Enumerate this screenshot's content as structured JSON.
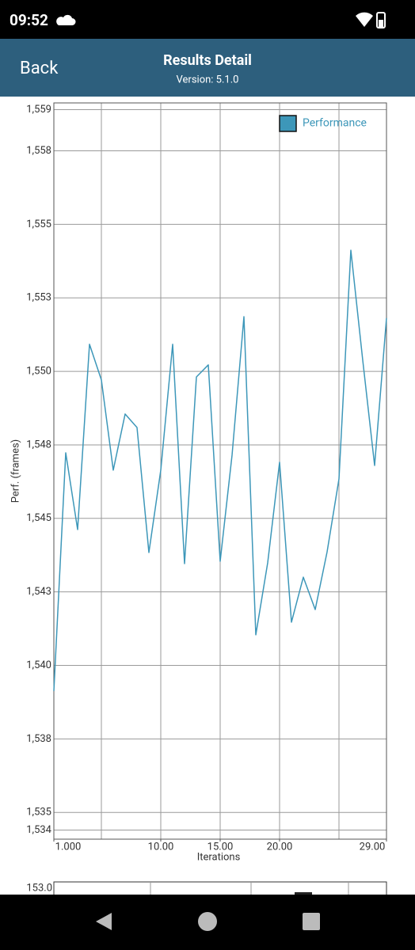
{
  "status_bar": {
    "time": "09:52"
  },
  "header": {
    "back": "Back",
    "title": "Results Detail",
    "subtitle": "Version: 5.1.0"
  },
  "chart_data": {
    "type": "line",
    "x_label": "Iterations",
    "y_label": "Perf. (frames)",
    "x": [
      1,
      2,
      3,
      4,
      5,
      6,
      7,
      8,
      9,
      10,
      11,
      12,
      13,
      14,
      15,
      16,
      17,
      18,
      19,
      20,
      21,
      22,
      23,
      24,
      25,
      26,
      27,
      28,
      29
    ],
    "series": [
      {
        "name": "Performance",
        "color": "#3d97b9",
        "values": [
          1539.13,
          1547.23,
          1544.62,
          1550.92,
          1549.71,
          1546.64,
          1548.55,
          1548.09,
          1543.84,
          1546.64,
          1550.92,
          1543.46,
          1549.81,
          1550.22,
          1543.54,
          1547.15,
          1551.86,
          1541.04,
          1543.49,
          1546.91,
          1541.47,
          1543.0,
          1541.9,
          1543.86,
          1546.34,
          1554.12,
          1550.38,
          1546.8,
          1551.81
        ]
      }
    ],
    "xlim": [
      1,
      29
    ],
    "xticks": [
      {
        "value": 1,
        "label": "1.000"
      },
      {
        "value": 10,
        "label": "10.00"
      },
      {
        "value": 15,
        "label": "15.00"
      },
      {
        "value": 20,
        "label": "20.00"
      },
      {
        "value": 29,
        "label": "29.00"
      }
    ],
    "xgrid": [
      5,
      10,
      15,
      20,
      25
    ],
    "ylim": [
      1534.09,
      1559.13
    ],
    "yticks": [
      {
        "value": 1558.9,
        "label": "1,559"
      },
      {
        "value": 1557.5,
        "label": "1,558"
      },
      {
        "value": 1555,
        "label": "1,555"
      },
      {
        "value": 1552.5,
        "label": "1,553"
      },
      {
        "value": 1550,
        "label": "1,550"
      },
      {
        "value": 1547.5,
        "label": "1,548"
      },
      {
        "value": 1545,
        "label": "1,545"
      },
      {
        "value": 1542.5,
        "label": "1,543"
      },
      {
        "value": 1540,
        "label": "1,540"
      },
      {
        "value": 1537.5,
        "label": "1,538"
      },
      {
        "value": 1535,
        "label": "1,535"
      },
      {
        "value": 1534.4,
        "label": "1,534"
      }
    ],
    "grid": true,
    "legend": "top-right"
  },
  "next_chart": {
    "top_label": "153.0"
  }
}
